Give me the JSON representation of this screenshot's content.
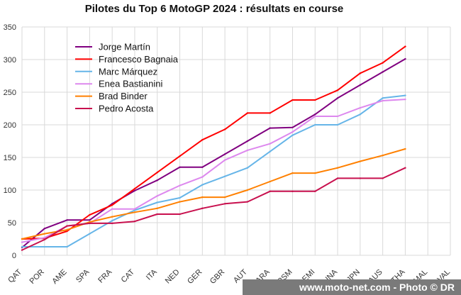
{
  "chart_data": {
    "type": "line",
    "title": "Pilotes du Top 6 MotoGP 2024 : résultats en course",
    "xlabel": "",
    "ylabel": "",
    "ylim": [
      0,
      350
    ],
    "yticks": [
      0,
      50,
      100,
      150,
      200,
      250,
      300,
      350
    ],
    "grid": true,
    "legend_position": "top-left",
    "categories": [
      "QAT",
      "POR",
      "AME",
      "SPA",
      "FRA",
      "CAT",
      "ITA",
      "NED",
      "GER",
      "GBR",
      "AUT",
      "ARA",
      "RSM",
      "EMI",
      "INA",
      "JPN",
      "AUS",
      "THA",
      "MAL",
      "VAL"
    ],
    "series": [
      {
        "name": "Jorge Martín",
        "color": "#800080",
        "values": [
          12,
          41,
          54,
          54,
          79,
          99,
          115,
          135,
          135,
          155,
          175,
          195,
          196,
          216,
          241,
          261,
          281,
          301,
          null,
          null
        ]
      },
      {
        "name": "Francesco Bagnaia",
        "color": "#ff0000",
        "values": [
          25,
          26,
          37,
          62,
          77,
          102,
          127,
          152,
          177,
          193,
          218,
          218,
          238,
          238,
          253,
          279,
          295,
          320,
          null,
          null
        ]
      },
      {
        "name": "Marc Márquez",
        "color": "#66b5e8",
        "values": [
          13,
          13,
          13,
          33,
          53,
          69,
          81,
          88,
          108,
          121,
          134,
          159,
          184,
          200,
          200,
          216,
          241,
          245,
          null,
          null
        ]
      },
      {
        "name": "Enea Bastianini",
        "color": "#dd88ee",
        "values": [
          20,
          27,
          45,
          49,
          71,
          71,
          91,
          107,
          120,
          146,
          161,
          171,
          189,
          213,
          213,
          226,
          237,
          239,
          null,
          null
        ]
      },
      {
        "name": "Brad Binder",
        "color": "#ff8000",
        "values": [
          25,
          33,
          39,
          51,
          59,
          66,
          72,
          82,
          89,
          89,
          100,
          113,
          126,
          126,
          134,
          144,
          153,
          163,
          null,
          null
        ]
      },
      {
        "name": "Pedro Acosta",
        "color": "#c8104e",
        "values": [
          8,
          24,
          45,
          49,
          49,
          52,
          63,
          63,
          72,
          79,
          82,
          98,
          98,
          98,
          118,
          118,
          118,
          134,
          null,
          null
        ]
      }
    ]
  },
  "credit": "www.moto-net.com - Photo © DR"
}
